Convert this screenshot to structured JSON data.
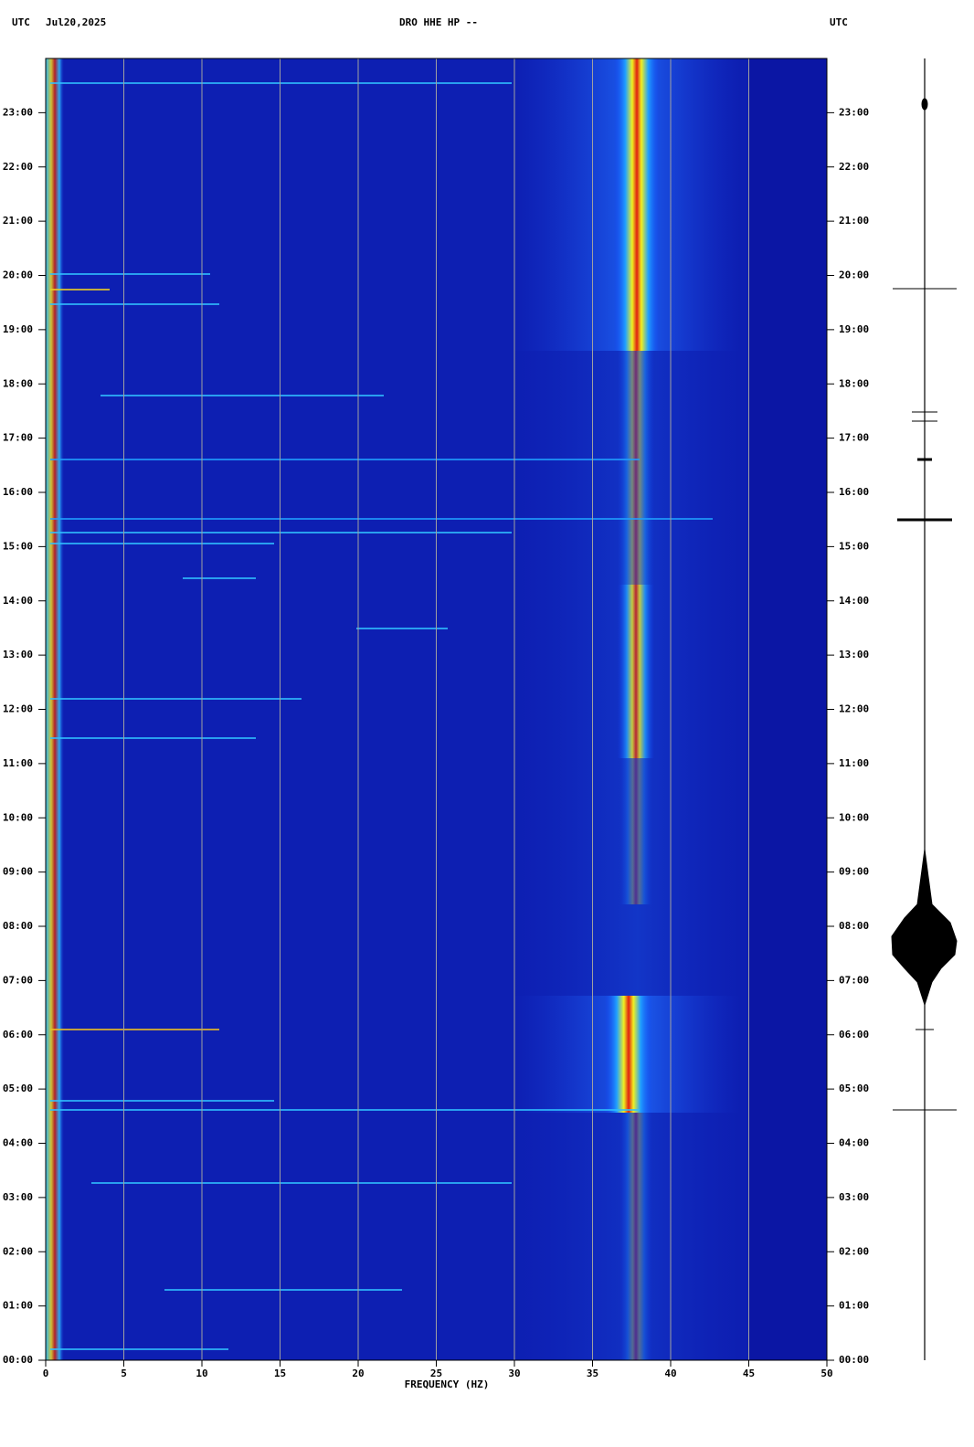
{
  "chart_data": {
    "type": "spectrogram",
    "title": "DRO HHE HP --",
    "timezone_left": "UTC",
    "date": "Jul20,2025",
    "timezone_right": "UTC",
    "x_label": "FREQUENCY (HZ)",
    "xlim": [
      0,
      50
    ],
    "xticks": [
      0,
      5,
      10,
      15,
      20,
      25,
      30,
      35,
      40,
      45,
      50
    ],
    "ylim": [
      0,
      24
    ],
    "yticks": [
      {
        "value": 0,
        "label": "00:00"
      },
      {
        "value": 1,
        "label": "01:00"
      },
      {
        "value": 2,
        "label": "02:00"
      },
      {
        "value": 3,
        "label": "03:00"
      },
      {
        "value": 4,
        "label": "04:00"
      },
      {
        "value": 5,
        "label": "05:00"
      },
      {
        "value": 6,
        "label": "06:00"
      },
      {
        "value": 7,
        "label": "07:00"
      },
      {
        "value": 8,
        "label": "08:00"
      },
      {
        "value": 9,
        "label": "09:00"
      },
      {
        "value": 10,
        "label": "10:00"
      },
      {
        "value": 11,
        "label": "11:00"
      },
      {
        "value": 12,
        "label": "12:00"
      },
      {
        "value": 13,
        "label": "13:00"
      },
      {
        "value": 14,
        "label": "14:00"
      },
      {
        "value": 15,
        "label": "15:00"
      },
      {
        "value": 16,
        "label": "16:00"
      },
      {
        "value": 17,
        "label": "17:00"
      },
      {
        "value": 18,
        "label": "18:00"
      },
      {
        "value": 19,
        "label": "19:00"
      },
      {
        "value": 20,
        "label": "20:00"
      },
      {
        "value": 21,
        "label": "21:00"
      },
      {
        "value": 22,
        "label": "22:00"
      },
      {
        "value": 23,
        "label": "23:00"
      }
    ],
    "grid": true,
    "grid_color": "#a0a0a0"
  }
}
